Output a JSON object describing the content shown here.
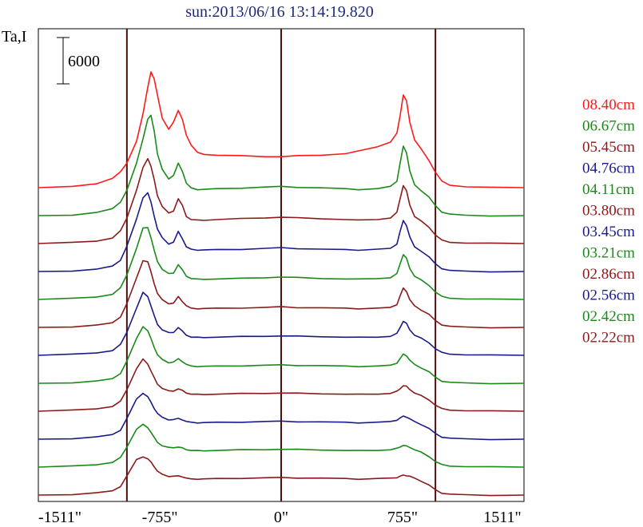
{
  "chart_data": {
    "type": "line",
    "title": "sun:2013/06/16 13:14:19.820",
    "ylabel": "Ta,I",
    "scale_bar_label": "6000",
    "scale_bar_value": 6000,
    "xlim": [
      -1511,
      1511
    ],
    "x_ticks": [
      {
        "value": -1511,
        "label": "-1511\""
      },
      {
        "value": -755,
        "label": "-755\""
      },
      {
        "value": 0,
        "label": "0\""
      },
      {
        "value": 755,
        "label": "755\""
      },
      {
        "value": 1511,
        "label": "1511\""
      }
    ],
    "vertical_lines": [
      -960,
      0,
      960
    ],
    "profile_x": [
      -1511,
      -1300,
      -1150,
      -1050,
      -1000,
      -960,
      -900,
      -860,
      -830,
      -810,
      -790,
      -770,
      -740,
      -700,
      -670,
      -640,
      -615,
      -590,
      -560,
      -520,
      -480,
      -400,
      -250,
      -100,
      0,
      100,
      250,
      400,
      480,
      600,
      680,
      720,
      740,
      760,
      780,
      800,
      830,
      870,
      920,
      960,
      1000,
      1050,
      1150,
      1300,
      1511
    ],
    "series": [
      {
        "name": "08.40cm",
        "color": "#ff1a1a",
        "values": [
          0,
          100,
          500,
          1200,
          2000,
          3200,
          6000,
          9500,
          13000,
          15000,
          14000,
          12000,
          9000,
          7500,
          8500,
          10000,
          8800,
          6800,
          5500,
          4500,
          4300,
          4200,
          4100,
          4000,
          4000,
          4100,
          4200,
          4400,
          4700,
          5300,
          5900,
          7000,
          9300,
          12000,
          11200,
          8500,
          6200,
          5000,
          3500,
          2000,
          800,
          300,
          100,
          0,
          0
        ]
      },
      {
        "name": "06.67cm",
        "color": "#1a8a1a",
        "values": [
          0,
          100,
          400,
          900,
          1800,
          3300,
          6800,
          10000,
          12500,
          13000,
          11000,
          8000,
          6000,
          4800,
          5200,
          6800,
          5800,
          4200,
          3600,
          3400,
          3400,
          3500,
          3600,
          3700,
          3800,
          3700,
          3600,
          3500,
          3400,
          3500,
          3800,
          4500,
          6800,
          9000,
          8200,
          5800,
          4000,
          3300,
          2400,
          1300,
          500,
          200,
          50,
          0,
          0
        ]
      },
      {
        "name": "05.45cm",
        "color": "#8b1a1a",
        "values": [
          0,
          100,
          300,
          700,
          1600,
          3300,
          6900,
          9800,
          11000,
          10000,
          8200,
          6200,
          4800,
          3900,
          4200,
          5800,
          4900,
          3500,
          3100,
          3000,
          3000,
          3100,
          3200,
          3300,
          3400,
          3300,
          3200,
          3100,
          3000,
          3100,
          3300,
          4000,
          5800,
          7500,
          6800,
          5000,
          3500,
          2900,
          2100,
          1100,
          400,
          150,
          50,
          0,
          0
        ]
      },
      {
        "name": "04.76cm",
        "color": "#1a1a8b",
        "values": [
          0,
          100,
          300,
          700,
          1500,
          3300,
          6800,
          9600,
          10200,
          9000,
          7200,
          5500,
          4400,
          3600,
          3800,
          5200,
          4300,
          3200,
          2900,
          2800,
          2800,
          2850,
          2900,
          3000,
          3100,
          3000,
          2900,
          2850,
          2800,
          2900,
          3000,
          3600,
          5200,
          6600,
          6000,
          4500,
          3200,
          2700,
          1900,
          1000,
          400,
          150,
          50,
          0,
          0
        ]
      },
      {
        "name": "04.11cm",
        "color": "#1a8a1a",
        "values": [
          0,
          100,
          300,
          650,
          1450,
          3200,
          6600,
          9200,
          9300,
          8000,
          6300,
          4900,
          3900,
          3300,
          3400,
          4500,
          3800,
          3000,
          2700,
          2600,
          2600,
          2650,
          2700,
          2800,
          2900,
          2800,
          2700,
          2650,
          2600,
          2700,
          2800,
          3300,
          4600,
          5800,
          5300,
          4000,
          3000,
          2500,
          1800,
          950,
          350,
          150,
          50,
          0,
          0
        ]
      },
      {
        "name": "03.80cm",
        "color": "#8b1a1a",
        "values": [
          0,
          100,
          300,
          600,
          1400,
          3100,
          6400,
          8700,
          8500,
          7200,
          5700,
          4400,
          3600,
          3100,
          3150,
          4000,
          3400,
          2800,
          2500,
          2450,
          2450,
          2500,
          2550,
          2600,
          2700,
          2600,
          2550,
          2500,
          2450,
          2500,
          2600,
          3000,
          4100,
          5100,
          4700,
          3600,
          2800,
          2300,
          1700,
          900,
          350,
          150,
          50,
          0,
          0
        ]
      },
      {
        "name": "03.45cm",
        "color": "#1a1a8b",
        "values": [
          0,
          100,
          300,
          600,
          1350,
          3000,
          6100,
          8100,
          7600,
          6400,
          5100,
          4000,
          3300,
          2900,
          2950,
          3600,
          3100,
          2600,
          2350,
          2300,
          2300,
          2350,
          2400,
          2450,
          2500,
          2450,
          2400,
          2350,
          2300,
          2350,
          2450,
          2800,
          3600,
          4400,
          4100,
          3300,
          2600,
          2200,
          1600,
          850,
          330,
          150,
          50,
          0,
          0
        ]
      },
      {
        "name": "03.21cm",
        "color": "#1a8a1a",
        "values": [
          0,
          100,
          300,
          600,
          1300,
          2900,
          5800,
          7400,
          6800,
          5800,
          4700,
          3700,
          3100,
          2700,
          2750,
          3200,
          2850,
          2450,
          2250,
          2200,
          2200,
          2250,
          2300,
          2350,
          2400,
          2350,
          2300,
          2250,
          2200,
          2250,
          2350,
          2650,
          3200,
          3800,
          3600,
          3000,
          2450,
          2050,
          1500,
          800,
          300,
          130,
          50,
          0,
          0
        ]
      },
      {
        "name": "02.86cm",
        "color": "#8b1a1a",
        "values": [
          0,
          100,
          300,
          600,
          1250,
          2800,
          5500,
          6700,
          6100,
          5200,
          4300,
          3500,
          2950,
          2600,
          2600,
          2900,
          2650,
          2350,
          2200,
          2150,
          2150,
          2200,
          2250,
          2300,
          2350,
          2300,
          2250,
          2200,
          2150,
          2200,
          2300,
          2550,
          2900,
          3300,
          3200,
          2800,
          2350,
          2000,
          1450,
          780,
          300,
          130,
          50,
          0,
          0
        ]
      },
      {
        "name": "02.56cm",
        "color": "#1a1a8b",
        "values": [
          0,
          100,
          300,
          600,
          1200,
          2700,
          5200,
          6000,
          5500,
          4800,
          4000,
          3350,
          2850,
          2550,
          2550,
          2700,
          2550,
          2300,
          2200,
          2150,
          2150,
          2200,
          2250,
          2300,
          2350,
          2300,
          2250,
          2200,
          2150,
          2200,
          2300,
          2500,
          2750,
          3000,
          2900,
          2650,
          2300,
          1950,
          1400,
          750,
          300,
          130,
          50,
          0,
          0
        ]
      },
      {
        "name": "02.42cm",
        "color": "#1a8a1a",
        "values": [
          0,
          100,
          300,
          600,
          1200,
          2600,
          4900,
          5500,
          5100,
          4500,
          3800,
          3200,
          2750,
          2500,
          2500,
          2600,
          2450,
          2250,
          2150,
          2100,
          2100,
          2150,
          2200,
          2250,
          2300,
          2250,
          2200,
          2150,
          2100,
          2150,
          2250,
          2400,
          2600,
          2800,
          2700,
          2550,
          2250,
          1900,
          1350,
          720,
          290,
          120,
          50,
          0,
          0
        ]
      },
      {
        "name": "02.22cm",
        "color": "#8b1a1a",
        "values": [
          0,
          100,
          300,
          550,
          1150,
          2500,
          4600,
          5000,
          4700,
          4300,
          3700,
          3100,
          2700,
          2450,
          2450,
          2500,
          2400,
          2200,
          2100,
          2100,
          2100,
          2150,
          2200,
          2250,
          2300,
          2250,
          2200,
          2150,
          2100,
          2150,
          2200,
          2300,
          2450,
          2600,
          2550,
          2450,
          2200,
          1850,
          1300,
          700,
          280,
          120,
          50,
          0,
          0
        ]
      }
    ]
  }
}
